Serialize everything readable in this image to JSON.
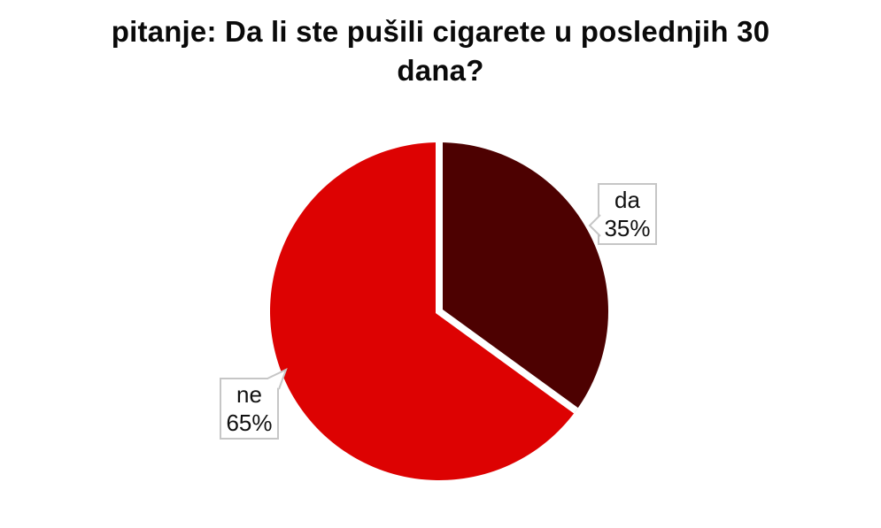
{
  "page": {
    "background_color": "#FFFFFF"
  },
  "title": "pitanje: Da li ste pušili cigarete u poslednjih 30 dana?",
  "chart_data": {
    "type": "pie",
    "title": "pitanje: Da li ste pušili cigarete u poslednjih 30 dana?",
    "categories": [
      "da",
      "ne"
    ],
    "values": [
      35,
      65
    ],
    "unit": "%",
    "series_colors": [
      "#4D0101",
      "#DD0202"
    ],
    "start_angle_deg": 0,
    "direction": "clockwise",
    "separator_color": "#FFFFFF",
    "legend": "none",
    "labels": [
      {
        "category": "da",
        "percent_text": "35%"
      },
      {
        "category": "ne",
        "percent_text": "65%"
      }
    ],
    "callout_style": {
      "background": "#FFFFFF",
      "border_color": "#C6C6C6",
      "text_color": "#111111"
    },
    "title_color": "#0A0A0A"
  }
}
